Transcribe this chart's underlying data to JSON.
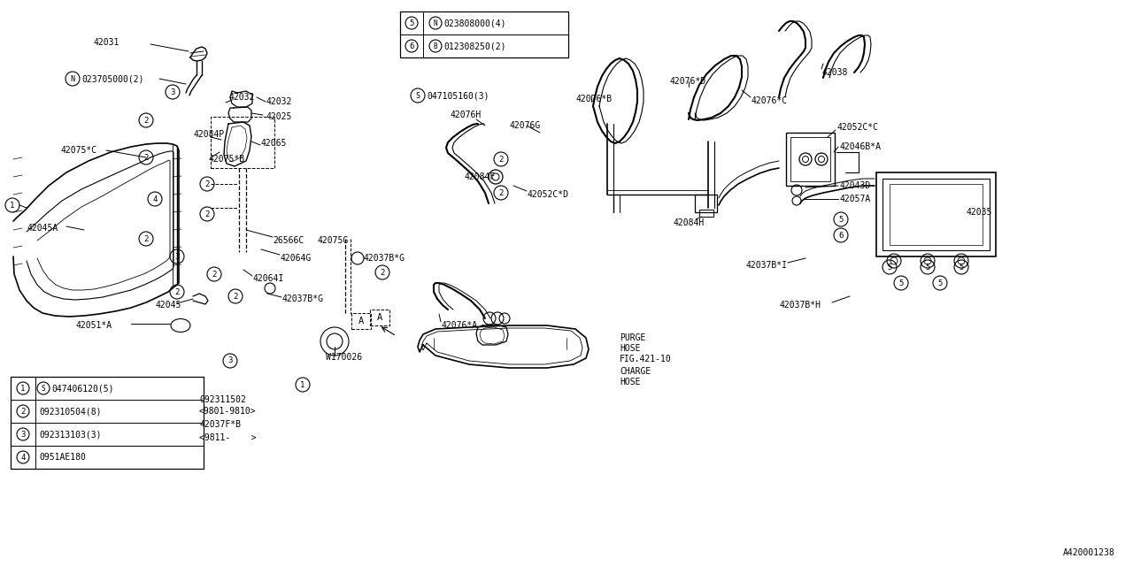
{
  "bg_color": "#ffffff",
  "line_color": "#000000",
  "diagram_id": "A420001238",
  "legend_items": [
    {
      "num": "1",
      "code": "S047406120(5)",
      "has_circle_prefix": true,
      "prefix": "S"
    },
    {
      "num": "2",
      "code": "092310504(8)",
      "has_circle_prefix": false,
      "prefix": ""
    },
    {
      "num": "3",
      "code": "092313103(3)",
      "has_circle_prefix": false,
      "prefix": ""
    },
    {
      "num": "4",
      "code": "0951AE180",
      "has_circle_prefix": false,
      "prefix": ""
    }
  ],
  "legend_items2": [
    {
      "num": "5",
      "code": "N023808000(4)",
      "prefix": "N"
    },
    {
      "num": "6",
      "code": "B012308250(2)",
      "prefix": "B"
    }
  ],
  "special_item_prefix": "S",
  "special_item_code": "047105160(3)",
  "notes_line1": "092311502",
  "notes_line2": "<9801-9810>",
  "notes_line3": "42037F*B",
  "notes_line4": "<9811-    >",
  "purge_lines": [
    "PURGE",
    "HOSE",
    "FIG.421-10",
    "CHARGE",
    "HOSE"
  ]
}
